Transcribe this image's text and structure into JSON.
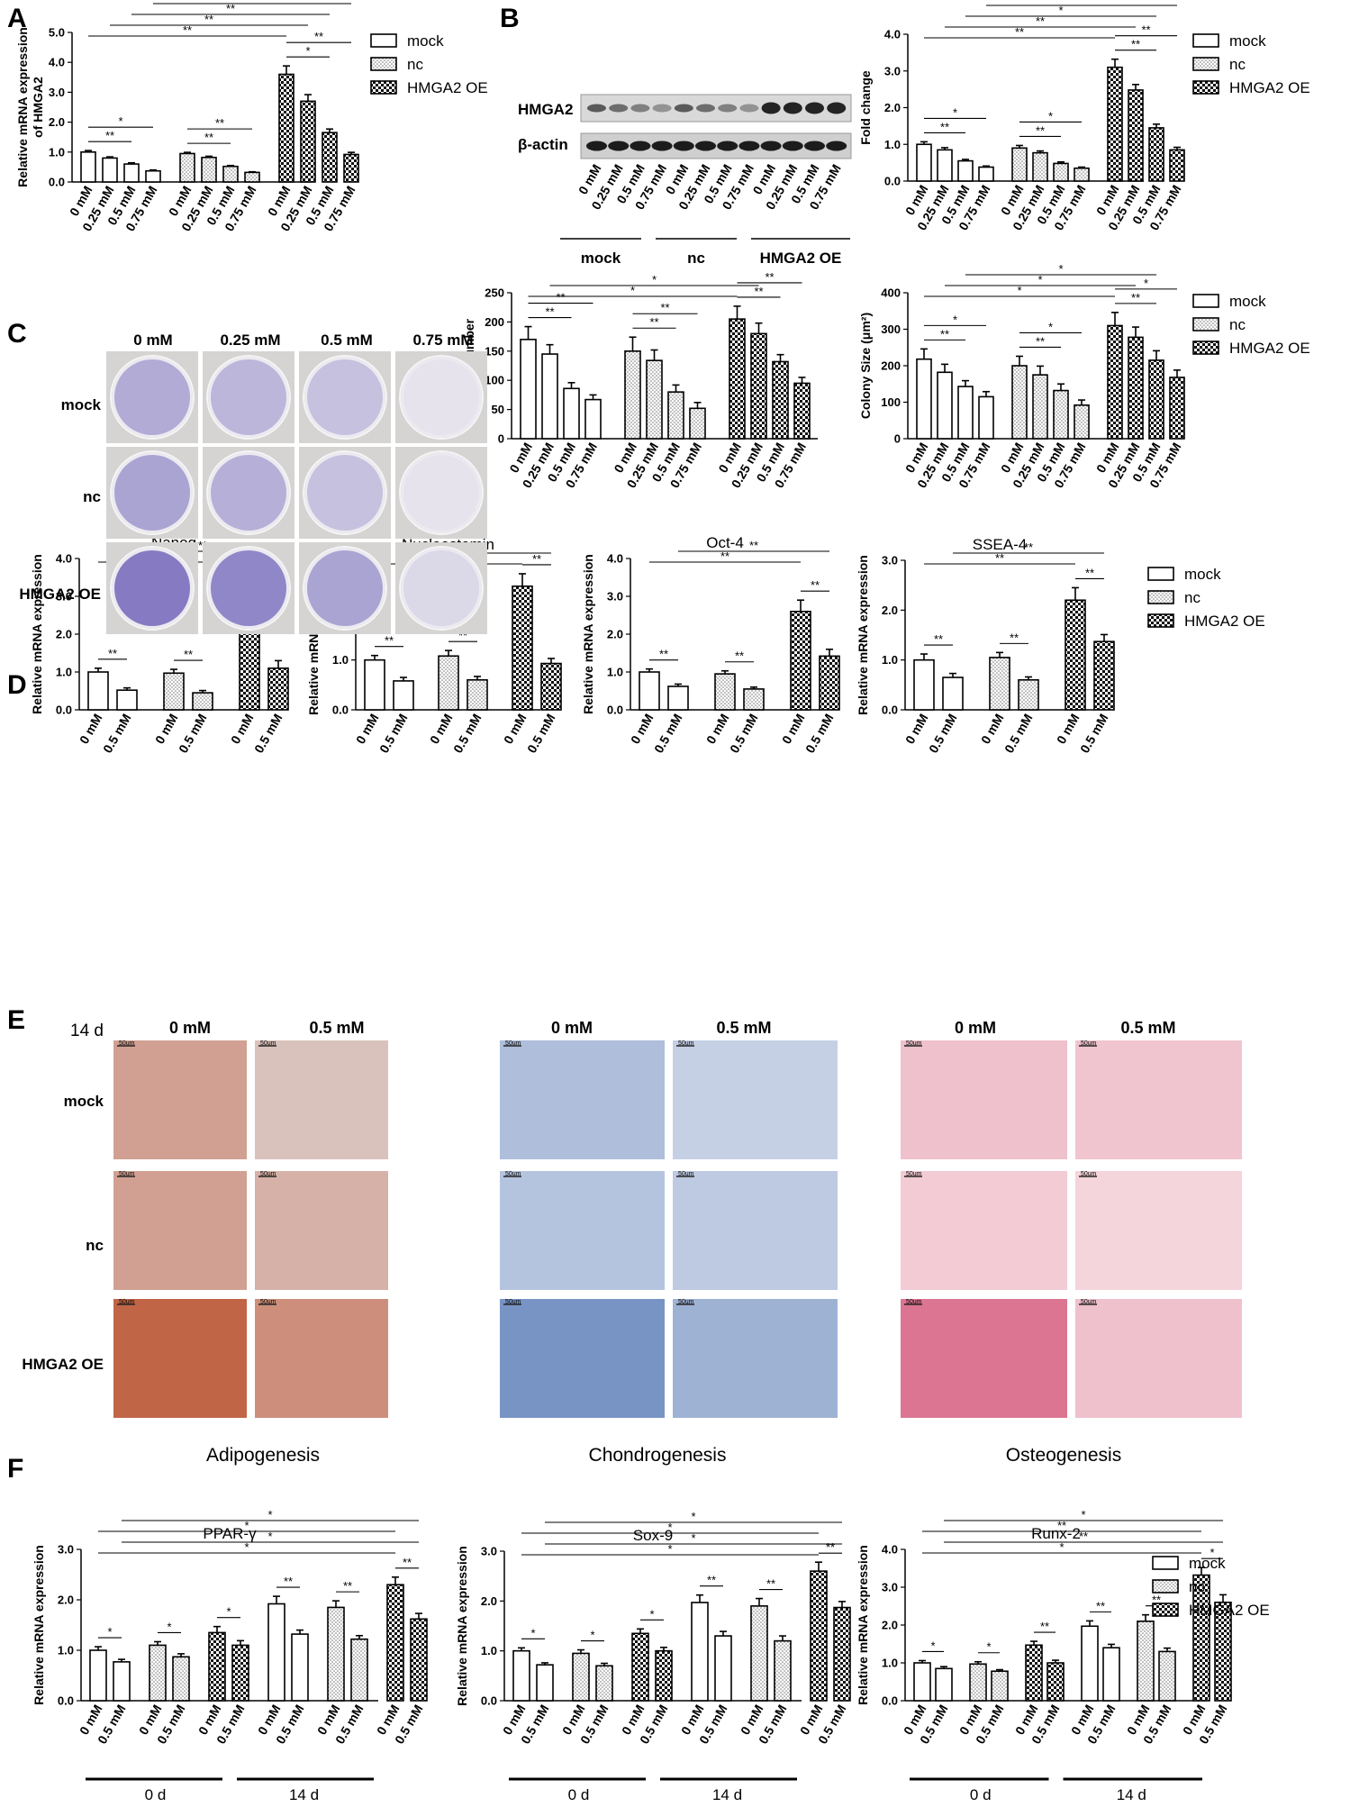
{
  "panels": {
    "A": "A",
    "B": "B",
    "C": "C",
    "D": "D",
    "E": "E",
    "F": "F"
  },
  "legend": [
    "mock",
    "nc",
    "HMGA2 OE"
  ],
  "conc4": [
    "0 mM",
    "0.25 mM",
    "0.5 mM",
    "0.75 mM"
  ],
  "conc2": [
    "0 mM",
    "0.5 mM"
  ],
  "western": {
    "rows": [
      "HMGA2",
      "β-actin"
    ],
    "groups": [
      "mock",
      "nc",
      "HMGA2 OE"
    ]
  },
  "plates": {
    "cols": [
      "0 mM",
      "0.25 mM",
      "0.5 mM",
      "0.75 mM"
    ],
    "rows": [
      "mock",
      "nc",
      "HMGA2 OE"
    ]
  },
  "micro": {
    "time": "14 d",
    "cols": [
      "0 mM",
      "0.5 mM"
    ],
    "rows": [
      "mock",
      "nc",
      "HMGA2 OE"
    ],
    "scale": "50um",
    "captions": [
      "Adipogenesis",
      "Chondrogenesis",
      "Osteogenesis"
    ]
  },
  "f_time": [
    "0 d",
    "14 d"
  ],
  "colors": {
    "mock": "#ffffff",
    "nc": "#dcdcdc",
    "oe": "#2a2a2a",
    "adipo_bg": "#e8eef3",
    "adipo_stain": "#b8421c",
    "chondro": "#4a6fb0",
    "osteo": "#e9a4b3"
  },
  "chart_data": [
    {
      "id": "A",
      "type": "bar",
      "ylabel": "Relative mRNA expression of HMGA2",
      "ylim": [
        0,
        5
      ],
      "yticks": [
        "0.0",
        "1.0",
        "2.0",
        "3.0",
        "4.0",
        "5.0"
      ],
      "categories": [
        "0 mM",
        "0.25 mM",
        "0.5 mM",
        "0.75 mM"
      ],
      "series": [
        {
          "name": "mock",
          "values": [
            1.0,
            0.8,
            0.6,
            0.37
          ],
          "err": [
            0.05,
            0.04,
            0.04,
            0.03
          ]
        },
        {
          "name": "nc",
          "values": [
            0.95,
            0.82,
            0.52,
            0.32
          ],
          "err": [
            0.04,
            0.04,
            0.03,
            0.02
          ]
        },
        {
          "name": "HMGA2 OE",
          "values": [
            3.6,
            2.7,
            1.65,
            0.92
          ],
          "err": [
            0.28,
            0.22,
            0.12,
            0.07
          ]
        }
      ],
      "sig": [
        "**",
        "*",
        "**",
        "**",
        "*",
        "**",
        "**",
        "**",
        "**",
        "**",
        "**"
      ]
    },
    {
      "id": "B",
      "type": "bar",
      "ylabel": "Fold change",
      "ylim": [
        0,
        4
      ],
      "yticks": [
        "0.0",
        "1.0",
        "2.0",
        "3.0",
        "4.0"
      ],
      "categories": [
        "0 mM",
        "0.25 mM",
        "0.5 mM",
        "0.75 mM"
      ],
      "series": [
        {
          "name": "mock",
          "values": [
            1.0,
            0.85,
            0.55,
            0.38
          ],
          "err": [
            0.07,
            0.06,
            0.04,
            0.03
          ]
        },
        {
          "name": "nc",
          "values": [
            0.9,
            0.77,
            0.48,
            0.35
          ],
          "err": [
            0.07,
            0.05,
            0.04,
            0.03
          ]
        },
        {
          "name": "HMGA2 OE",
          "values": [
            3.1,
            2.48,
            1.45,
            0.85
          ],
          "err": [
            0.22,
            0.15,
            0.1,
            0.07
          ]
        }
      ],
      "sig": [
        "**",
        "*",
        "**",
        "*",
        "**",
        "**",
        "**",
        "**",
        "*",
        "**"
      ]
    },
    {
      "id": "C1",
      "type": "bar",
      "ylabel": "Colony Number",
      "ylim": [
        0,
        250
      ],
      "yticks": [
        "0",
        "50",
        "100",
        "150",
        "200",
        "250"
      ],
      "categories": [
        "0 mM",
        "0.25 mM",
        "0.5 mM",
        "0.75 mM"
      ],
      "series": [
        {
          "name": "mock",
          "values": [
            170,
            145,
            86,
            67
          ],
          "err": [
            22,
            16,
            10,
            8
          ]
        },
        {
          "name": "nc",
          "values": [
            150,
            134,
            80,
            52
          ],
          "err": [
            24,
            18,
            12,
            10
          ]
        },
        {
          "name": "HMGA2 OE",
          "values": [
            205,
            180,
            132,
            95
          ],
          "err": [
            22,
            18,
            12,
            10
          ]
        }
      ],
      "sig": [
        "**",
        "**",
        "**",
        "**",
        "**",
        "**",
        "*",
        "*"
      ]
    },
    {
      "id": "C2",
      "type": "bar",
      "ylabel": "Colony Size (μm²)",
      "ylim": [
        0,
        400
      ],
      "yticks": [
        "0",
        "100",
        "200",
        "300",
        "400"
      ],
      "categories": [
        "0 mM",
        "0.25 mM",
        "0.5 mM",
        "0.75 mM"
      ],
      "series": [
        {
          "name": "mock",
          "values": [
            218,
            182,
            143,
            115
          ],
          "err": [
            28,
            22,
            16,
            14
          ]
        },
        {
          "name": "nc",
          "values": [
            200,
            175,
            132,
            92
          ],
          "err": [
            26,
            24,
            18,
            14
          ]
        },
        {
          "name": "HMGA2 OE",
          "values": [
            310,
            278,
            215,
            168
          ],
          "err": [
            36,
            28,
            26,
            20
          ]
        }
      ],
      "sig": [
        "**",
        "*",
        "**",
        "*",
        "**",
        "*",
        "*",
        "*",
        "*"
      ]
    },
    {
      "id": "D1",
      "type": "bar",
      "title": "Nanog",
      "ylabel": "Relative mRNA expression",
      "ylim": [
        0,
        4
      ],
      "yticks": [
        "0.0",
        "1.0",
        "2.0",
        "3.0",
        "4.0"
      ],
      "categories": [
        "0 mM",
        "0.5 mM"
      ],
      "series": [
        {
          "name": "mock",
          "values": [
            1.0,
            0.52
          ],
          "err": [
            0.1,
            0.06
          ]
        },
        {
          "name": "nc",
          "values": [
            0.97,
            0.45
          ],
          "err": [
            0.1,
            0.06
          ]
        },
        {
          "name": "HMGA2 OE",
          "values": [
            2.9,
            1.1
          ],
          "err": [
            0.28,
            0.2
          ]
        }
      ],
      "sig": [
        "**",
        "**",
        "**",
        "**",
        "**"
      ]
    },
    {
      "id": "D2",
      "type": "bar",
      "title": "Nucleostemin",
      "ylabel": "Relative mRNA expression",
      "ylim": [
        0,
        3
      ],
      "yticks": [
        "0.0",
        "1.0",
        "2.0",
        "3.0"
      ],
      "categories": [
        "0 mM",
        "0.5 mM"
      ],
      "series": [
        {
          "name": "mock",
          "values": [
            1.0,
            0.58
          ],
          "err": [
            0.09,
            0.07
          ]
        },
        {
          "name": "nc",
          "values": [
            1.08,
            0.6
          ],
          "err": [
            0.11,
            0.07
          ]
        },
        {
          "name": "HMGA2 OE",
          "values": [
            2.48,
            0.93
          ],
          "err": [
            0.25,
            0.1
          ]
        }
      ],
      "sig": [
        "**",
        "**",
        "**",
        "*",
        "**"
      ]
    },
    {
      "id": "D3",
      "type": "bar",
      "title": "Oct-4",
      "ylabel": "Relative mRNA expression",
      "ylim": [
        0,
        4
      ],
      "yticks": [
        "0.0",
        "1.0",
        "2.0",
        "3.0",
        "4.0"
      ],
      "categories": [
        "0 mM",
        "0.5 mM"
      ],
      "series": [
        {
          "name": "mock",
          "values": [
            1.0,
            0.62
          ],
          "err": [
            0.08,
            0.06
          ]
        },
        {
          "name": "nc",
          "values": [
            0.95,
            0.55
          ],
          "err": [
            0.08,
            0.05
          ]
        },
        {
          "name": "HMGA2 OE",
          "values": [
            2.6,
            1.42
          ],
          "err": [
            0.3,
            0.18
          ]
        }
      ],
      "sig": [
        "**",
        "**",
        "**",
        "**",
        "**"
      ]
    },
    {
      "id": "D4",
      "type": "bar",
      "title": "SSEA-4",
      "ylabel": "Relative mRNA expression",
      "ylim": [
        0,
        3
      ],
      "yticks": [
        "0.0",
        "1.0",
        "2.0",
        "3.0"
      ],
      "categories": [
        "0 mM",
        "0.5 mM"
      ],
      "series": [
        {
          "name": "mock",
          "values": [
            1.0,
            0.65
          ],
          "err": [
            0.12,
            0.08
          ]
        },
        {
          "name": "nc",
          "values": [
            1.05,
            0.6
          ],
          "err": [
            0.1,
            0.06
          ]
        },
        {
          "name": "HMGA2 OE",
          "values": [
            2.2,
            1.37
          ],
          "err": [
            0.25,
            0.14
          ]
        }
      ],
      "sig": [
        "**",
        "**",
        "**",
        "**",
        "**"
      ]
    },
    {
      "id": "F1",
      "type": "bar",
      "title": "PPAR-γ",
      "ylabel": "Relative mRNA expression",
      "ylim": [
        0,
        3
      ],
      "yticks": [
        "0.0",
        "1.0",
        "2.0",
        "3.0"
      ],
      "categories": [
        "0 mM",
        "0.5 mM"
      ],
      "series": [
        {
          "name": "mock 0 d",
          "values": [
            1.0,
            0.77
          ],
          "err": [
            0.07,
            0.05
          ]
        },
        {
          "name": "nc 0 d",
          "values": [
            1.1,
            0.87
          ],
          "err": [
            0.07,
            0.06
          ]
        },
        {
          "name": "HMGA2 OE 0 d",
          "values": [
            1.35,
            1.1
          ],
          "err": [
            0.12,
            0.09
          ]
        },
        {
          "name": "mock 14 d",
          "values": [
            1.92,
            1.32
          ],
          "err": [
            0.15,
            0.08
          ]
        },
        {
          "name": "nc 14 d",
          "values": [
            1.85,
            1.22
          ],
          "err": [
            0.13,
            0.07
          ]
        },
        {
          "name": "HMGA2 OE 14 d",
          "values": [
            2.3,
            1.62
          ],
          "err": [
            0.15,
            0.11
          ]
        }
      ],
      "sig": [
        "*",
        "*",
        "*",
        "**",
        "**",
        "**",
        "*",
        "*",
        "*",
        "*"
      ]
    },
    {
      "id": "F2",
      "type": "bar",
      "title": "Sox-9",
      "ylabel": "Relative mRNA expression",
      "ylim": [
        0,
        3
      ],
      "yticks": [
        "0.0",
        "1.0",
        "2.0",
        "3.0"
      ],
      "categories": [
        "0 mM",
        "0.5 mM"
      ],
      "series": [
        {
          "name": "mock 0 d",
          "values": [
            1.0,
            0.72
          ],
          "err": [
            0.06,
            0.04
          ]
        },
        {
          "name": "nc 0 d",
          "values": [
            0.95,
            0.7
          ],
          "err": [
            0.07,
            0.05
          ]
        },
        {
          "name": "HMGA2 OE 0 d",
          "values": [
            1.35,
            1.0
          ],
          "err": [
            0.09,
            0.07
          ]
        },
        {
          "name": "mock 14 d",
          "values": [
            1.97,
            1.3
          ],
          "err": [
            0.15,
            0.09
          ]
        },
        {
          "name": "nc 14 d",
          "values": [
            1.9,
            1.2
          ],
          "err": [
            0.15,
            0.1
          ]
        },
        {
          "name": "HMGA2 OE 14 d",
          "values": [
            2.6,
            1.87
          ],
          "err": [
            0.18,
            0.12
          ]
        }
      ],
      "sig": [
        "*",
        "*",
        "*",
        "**",
        "**",
        "**",
        "*",
        "*",
        "*",
        "*"
      ]
    },
    {
      "id": "F3",
      "type": "bar",
      "title": "Runx-2",
      "ylabel": "Relative mRNA expression",
      "ylim": [
        0,
        4
      ],
      "yticks": [
        "0.0",
        "1.0",
        "2.0",
        "3.0",
        "4.0"
      ],
      "categories": [
        "0 mM",
        "0.5 mM"
      ],
      "series": [
        {
          "name": "mock 0 d",
          "values": [
            1.0,
            0.85
          ],
          "err": [
            0.06,
            0.05
          ]
        },
        {
          "name": "nc 0 d",
          "values": [
            0.97,
            0.78
          ],
          "err": [
            0.06,
            0.04
          ]
        },
        {
          "name": "HMGA2 OE 0 d",
          "values": [
            1.47,
            1.0
          ],
          "err": [
            0.1,
            0.07
          ]
        },
        {
          "name": "mock 14 d",
          "values": [
            1.97,
            1.4
          ],
          "err": [
            0.14,
            0.09
          ]
        },
        {
          "name": "nc 14 d",
          "values": [
            2.1,
            1.3
          ],
          "err": [
            0.17,
            0.09
          ]
        },
        {
          "name": "HMGA2 OE 14 d",
          "values": [
            3.32,
            2.6
          ],
          "err": [
            0.2,
            0.2
          ]
        }
      ],
      "sig": [
        "*",
        "*",
        "**",
        "**",
        "**",
        "*",
        "*",
        "**",
        "**",
        "*"
      ]
    }
  ]
}
